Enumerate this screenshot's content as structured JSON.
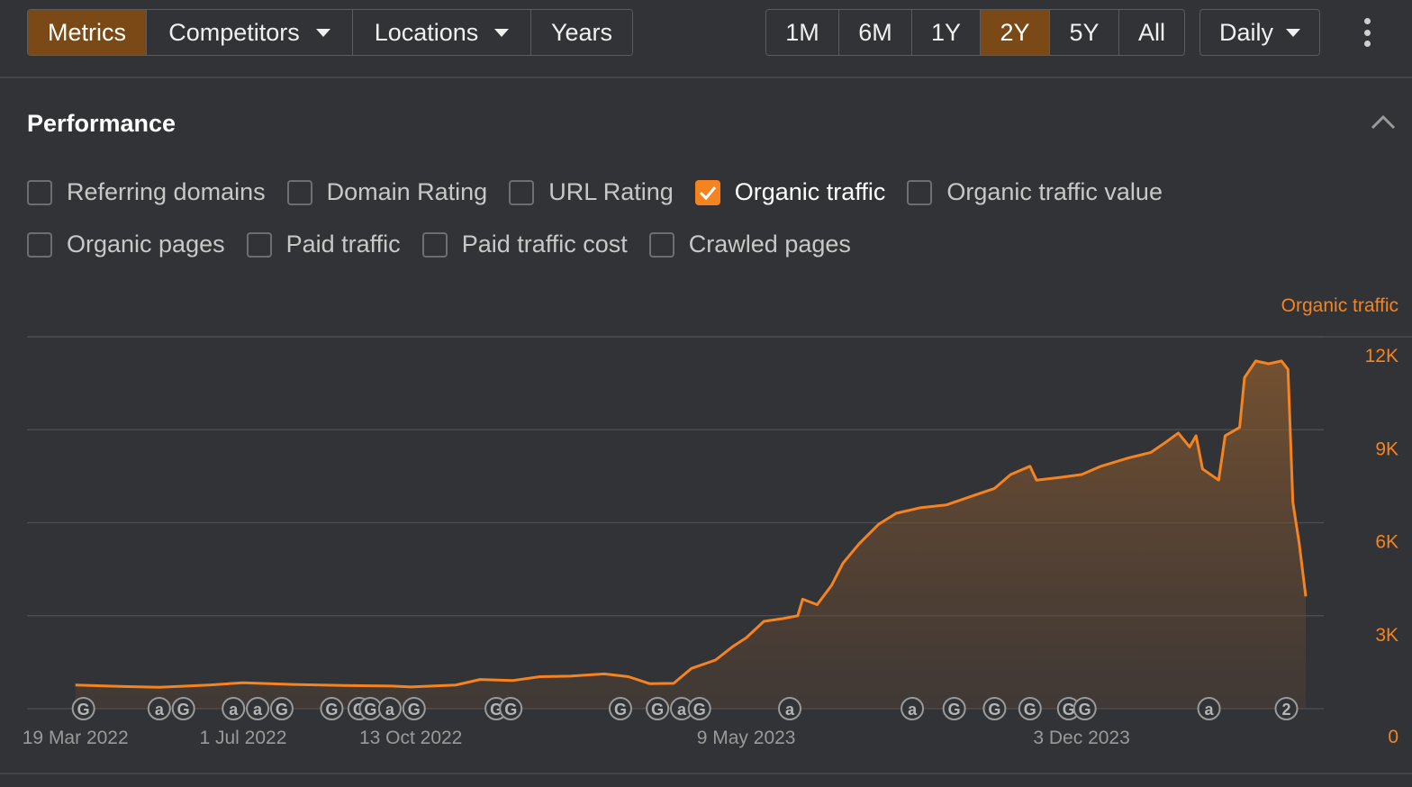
{
  "toolbar": {
    "left_buttons": [
      {
        "label": "Metrics",
        "active": true,
        "dropdown": false
      },
      {
        "label": "Competitors",
        "active": false,
        "dropdown": true
      },
      {
        "label": "Locations",
        "active": false,
        "dropdown": true
      },
      {
        "label": "Years",
        "active": false,
        "dropdown": false
      }
    ],
    "ranges": [
      {
        "label": "1M",
        "active": false
      },
      {
        "label": "6M",
        "active": false
      },
      {
        "label": "1Y",
        "active": false
      },
      {
        "label": "2Y",
        "active": true
      },
      {
        "label": "5Y",
        "active": false
      },
      {
        "label": "All",
        "active": false
      }
    ],
    "granularity": "Daily",
    "more_icon": "kebab-menu-icon"
  },
  "section": {
    "title": "Performance",
    "collapse_icon": "chevron-up-icon"
  },
  "metrics": {
    "row1": [
      {
        "label": "Referring domains",
        "checked": false
      },
      {
        "label": "Domain Rating",
        "checked": false
      },
      {
        "label": "URL Rating",
        "checked": false
      },
      {
        "label": "Organic traffic",
        "checked": true
      },
      {
        "label": "Organic traffic value",
        "checked": false
      }
    ],
    "row2": [
      {
        "label": "Organic pages",
        "checked": false
      },
      {
        "label": "Paid traffic",
        "checked": false
      },
      {
        "label": "Paid traffic cost",
        "checked": false
      },
      {
        "label": "Crawled pages",
        "checked": false
      }
    ]
  },
  "colors": {
    "accent": "#f5831f",
    "active_button": "#7a4915",
    "background": "#323336",
    "grid": "#4a4b4f"
  },
  "chart_data": {
    "type": "area",
    "series": [
      {
        "name": "Organic traffic",
        "points": [
          [
            "2022-03-19",
            400
          ],
          [
            "2022-04-15",
            350
          ],
          [
            "2022-05-10",
            320
          ],
          [
            "2022-06-10",
            400
          ],
          [
            "2022-07-01",
            480
          ],
          [
            "2022-08-01",
            420
          ],
          [
            "2022-09-01",
            380
          ],
          [
            "2022-10-01",
            360
          ],
          [
            "2022-10-13",
            330
          ],
          [
            "2022-11-10",
            400
          ],
          [
            "2022-11-25",
            600
          ],
          [
            "2022-12-15",
            560
          ],
          [
            "2023-01-01",
            700
          ],
          [
            "2023-01-20",
            720
          ],
          [
            "2023-02-10",
            800
          ],
          [
            "2023-02-25",
            700
          ],
          [
            "2023-03-10",
            450
          ],
          [
            "2023-03-25",
            460
          ],
          [
            "2023-04-05",
            1000
          ],
          [
            "2023-04-20",
            1300
          ],
          [
            "2023-05-01",
            1800
          ],
          [
            "2023-05-09",
            2100
          ],
          [
            "2023-05-20",
            2700
          ],
          [
            "2023-06-01",
            2800
          ],
          [
            "2023-06-10",
            2900
          ],
          [
            "2023-06-13",
            3500
          ],
          [
            "2023-06-22",
            3300
          ],
          [
            "2023-07-01",
            4000
          ],
          [
            "2023-07-08",
            4800
          ],
          [
            "2023-07-18",
            5500
          ],
          [
            "2023-07-30",
            6200
          ],
          [
            "2023-08-10",
            6600
          ],
          [
            "2023-08-25",
            6800
          ],
          [
            "2023-09-10",
            6900
          ],
          [
            "2023-09-25",
            7200
          ],
          [
            "2023-10-10",
            7500
          ],
          [
            "2023-10-20",
            8000
          ],
          [
            "2023-11-01",
            8300
          ],
          [
            "2023-11-05",
            7800
          ],
          [
            "2023-11-20",
            7900
          ],
          [
            "2023-12-03",
            8000
          ],
          [
            "2023-12-15",
            8300
          ],
          [
            "2024-01-01",
            8600
          ],
          [
            "2024-01-15",
            8800
          ],
          [
            "2024-01-25",
            9200
          ],
          [
            "2024-02-01",
            9500
          ],
          [
            "2024-02-08",
            9000
          ],
          [
            "2024-02-12",
            9400
          ],
          [
            "2024-02-16",
            8200
          ],
          [
            "2024-02-26",
            7800
          ],
          [
            "2024-03-01",
            9400
          ],
          [
            "2024-03-10",
            9700
          ],
          [
            "2024-03-13",
            11500
          ],
          [
            "2024-03-20",
            12100
          ],
          [
            "2024-03-28",
            12000
          ],
          [
            "2024-04-05",
            12100
          ],
          [
            "2024-04-09",
            11800
          ],
          [
            "2024-04-12",
            7000
          ],
          [
            "2024-04-16",
            5500
          ],
          [
            "2024-04-20",
            3600
          ]
        ]
      }
    ],
    "y_axis_title": "Organic traffic",
    "yticks": [
      {
        "value": 0,
        "label": "0"
      },
      {
        "value": 3000,
        "label": "3K"
      },
      {
        "value": 6000,
        "label": "6K"
      },
      {
        "value": 9000,
        "label": "9K"
      },
      {
        "value": 12000,
        "label": "12K"
      }
    ],
    "ylim": [
      0,
      12000
    ],
    "xlim": [
      "2022-02-17",
      "2024-04-20"
    ],
    "xticks": [
      {
        "date": "2022-03-19",
        "label": "19 Mar 2022"
      },
      {
        "date": "2022-07-01",
        "label": "1 Jul 2022"
      },
      {
        "date": "2022-10-13",
        "label": "13 Oct 2022"
      },
      {
        "date": "2023-05-09",
        "label": "9 May 2023"
      },
      {
        "date": "2023-12-03",
        "label": "3 Dec 2023"
      }
    ],
    "annotations": [
      {
        "date": "2022-03-24",
        "label": "G"
      },
      {
        "date": "2022-05-10",
        "label": "a"
      },
      {
        "date": "2022-05-25",
        "label": "G"
      },
      {
        "date": "2022-06-25",
        "label": "a"
      },
      {
        "date": "2022-07-10",
        "label": "a"
      },
      {
        "date": "2022-07-25",
        "label": "G"
      },
      {
        "date": "2022-08-25",
        "label": "G"
      },
      {
        "date": "2022-09-11",
        "label": "G"
      },
      {
        "date": "2022-09-18",
        "label": "G"
      },
      {
        "date": "2022-09-30",
        "label": "a"
      },
      {
        "date": "2022-10-15",
        "label": "G"
      },
      {
        "date": "2022-12-05",
        "label": "G"
      },
      {
        "date": "2022-12-14",
        "label": "G"
      },
      {
        "date": "2023-02-20",
        "label": "G"
      },
      {
        "date": "2023-03-15",
        "label": "G"
      },
      {
        "date": "2023-03-30",
        "label": "a"
      },
      {
        "date": "2023-04-10",
        "label": "G"
      },
      {
        "date": "2023-06-05",
        "label": "a"
      },
      {
        "date": "2023-08-20",
        "label": "a"
      },
      {
        "date": "2023-09-15",
        "label": "G"
      },
      {
        "date": "2023-10-10",
        "label": "G"
      },
      {
        "date": "2023-11-01",
        "label": "G"
      },
      {
        "date": "2023-11-25",
        "label": "G"
      },
      {
        "date": "2023-12-05",
        "label": "G"
      },
      {
        "date": "2024-02-20",
        "label": "a"
      },
      {
        "date": "2024-04-08",
        "label": "2"
      }
    ],
    "grid": true
  }
}
